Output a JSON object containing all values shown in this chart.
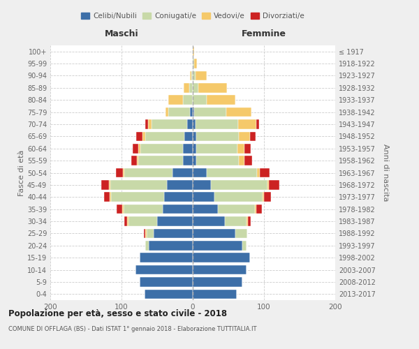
{
  "age_groups": [
    "0-4",
    "5-9",
    "10-14",
    "15-19",
    "20-24",
    "25-29",
    "30-34",
    "35-39",
    "40-44",
    "45-49",
    "50-54",
    "55-59",
    "60-64",
    "65-69",
    "70-74",
    "75-79",
    "80-84",
    "85-89",
    "90-94",
    "95-99",
    "100+"
  ],
  "birth_years": [
    "2013-2017",
    "2008-2012",
    "2003-2007",
    "1998-2002",
    "1993-1997",
    "1988-1992",
    "1983-1987",
    "1978-1982",
    "1973-1977",
    "1968-1972",
    "1963-1967",
    "1958-1962",
    "1953-1957",
    "1948-1952",
    "1943-1947",
    "1938-1942",
    "1933-1937",
    "1928-1932",
    "1923-1927",
    "1918-1922",
    "≤ 1917"
  ],
  "colors": {
    "celibe": "#3d6fa8",
    "coniugato": "#c8d9a8",
    "vedovo": "#f5c96a",
    "divorziato": "#cc2222"
  },
  "maschi": {
    "celibe": [
      68,
      75,
      80,
      75,
      62,
      55,
      50,
      42,
      40,
      36,
      28,
      14,
      14,
      12,
      8,
      4,
      0,
      0,
      0,
      0,
      0
    ],
    "coniugato": [
      0,
      0,
      0,
      0,
      5,
      10,
      40,
      55,
      75,
      80,
      68,
      62,
      60,
      55,
      50,
      30,
      14,
      5,
      2,
      0,
      0
    ],
    "vedovo": [
      0,
      0,
      0,
      0,
      0,
      2,
      2,
      2,
      2,
      2,
      2,
      2,
      2,
      4,
      5,
      4,
      20,
      8,
      2,
      0,
      0
    ],
    "divorziato": [
      0,
      0,
      0,
      0,
      0,
      2,
      4,
      8,
      8,
      10,
      10,
      8,
      8,
      8,
      4,
      0,
      0,
      0,
      0,
      0,
      0
    ]
  },
  "femmine": {
    "nubile": [
      62,
      70,
      75,
      80,
      70,
      60,
      45,
      35,
      30,
      25,
      20,
      5,
      5,
      5,
      4,
      2,
      0,
      0,
      0,
      0,
      0
    ],
    "coniugata": [
      0,
      0,
      0,
      0,
      5,
      16,
      30,
      52,
      68,
      80,
      70,
      60,
      58,
      60,
      60,
      45,
      20,
      8,
      4,
      2,
      0
    ],
    "vedova": [
      0,
      0,
      0,
      0,
      0,
      0,
      2,
      2,
      2,
      2,
      4,
      8,
      10,
      15,
      25,
      35,
      40,
      40,
      16,
      4,
      2
    ],
    "divorziata": [
      0,
      0,
      0,
      0,
      0,
      0,
      4,
      8,
      10,
      15,
      14,
      10,
      8,
      8,
      4,
      0,
      0,
      0,
      0,
      0,
      0
    ]
  },
  "title": "Popolazione per età, sesso e stato civile - 2018",
  "subtitle": "COMUNE DI OFFLAGA (BS) - Dati ISTAT 1° gennaio 2018 - Elaborazione TUTTITALIA.IT",
  "ylabel_left": "Fasce di età",
  "ylabel_right": "Anni di nascita",
  "xlabel_left": "Maschi",
  "xlabel_right": "Femmine",
  "xlim": 200,
  "legend_labels": [
    "Celibi/Nubili",
    "Coniugati/e",
    "Vedovi/e",
    "Divorziati/e"
  ],
  "background_color": "#efefef",
  "plot_background": "#ffffff"
}
